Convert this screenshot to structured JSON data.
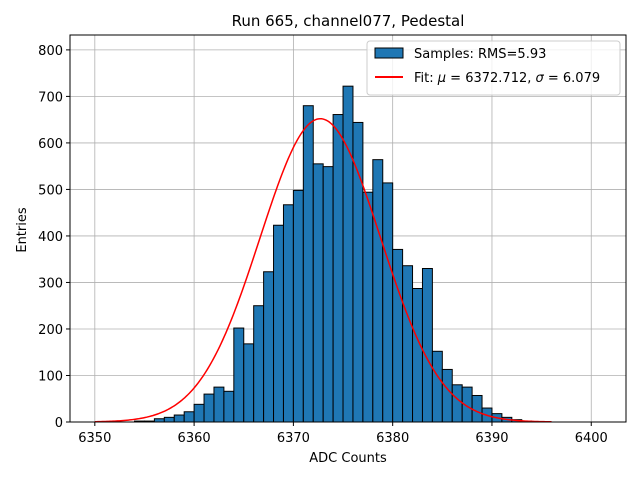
{
  "chart_data": {
    "type": "bar",
    "title": "Run 665, channel077, Pedestal",
    "xlabel": "ADC Counts",
    "ylabel": "Entries",
    "xlim": [
      6347.5,
      6403.5
    ],
    "ylim": [
      0,
      832
    ],
    "xticks": [
      6350,
      6360,
      6370,
      6380,
      6390,
      6400
    ],
    "yticks": [
      0,
      100,
      200,
      300,
      400,
      500,
      600,
      700,
      800
    ],
    "grid": true,
    "legend_position": "top-right",
    "histogram": {
      "name": "Samples: RMS=5.93",
      "bin_width": 1,
      "bin_edges_start": 6354,
      "counts": [
        2,
        2,
        7,
        10,
        15,
        22,
        38,
        60,
        75,
        66,
        202,
        168,
        250,
        323,
        423,
        467,
        498,
        680,
        555,
        549,
        661,
        722,
        644,
        494,
        564,
        514,
        371,
        336,
        287,
        330,
        152,
        113,
        80,
        75,
        57,
        30,
        18,
        10,
        5,
        2,
        1
      ],
      "color": "#1f77b4",
      "edgecolor": "#000000"
    },
    "fit": {
      "name": "Fit: μ = 6372.712, σ = 6.079",
      "label_prefix": "Fit: ",
      "mu_symbol": "μ",
      "mu_text": " = 6372.712, ",
      "sigma_symbol": "σ",
      "sigma_text": " = 6.079",
      "mu": 6372.712,
      "sigma": 6.079,
      "amplitude": 652,
      "x_range": [
        6350,
        6396
      ],
      "color": "#ff0000"
    }
  }
}
